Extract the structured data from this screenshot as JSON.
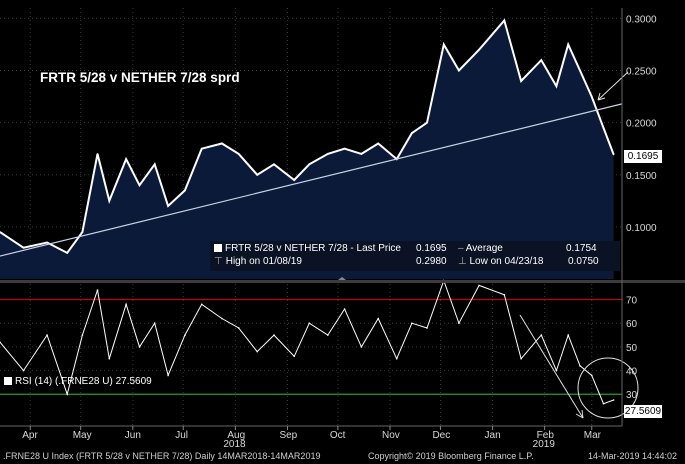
{
  "chart_data": {
    "type": "area",
    "title": "FRTR 5/28 v NETHER 7/28 sprd",
    "price_panel": {
      "ylim": [
        0.05,
        0.31
      ],
      "ticks": [
        "0.3000",
        "0.2500",
        "0.2000",
        "0.1500",
        "0.1000"
      ],
      "tick_values": [
        0.3,
        0.25,
        0.2,
        0.15,
        0.1
      ],
      "x": [
        "2018-03-14",
        "2018-03-28",
        "2018-04-11",
        "2018-04-23",
        "2018-05-02",
        "2018-05-11",
        "2018-05-18",
        "2018-05-28",
        "2018-06-05",
        "2018-06-14",
        "2018-06-22",
        "2018-07-02",
        "2018-07-12",
        "2018-07-24",
        "2018-08-03",
        "2018-08-14",
        "2018-08-24",
        "2018-09-05",
        "2018-09-14",
        "2018-09-25",
        "2018-10-05",
        "2018-10-15",
        "2018-10-25",
        "2018-11-05",
        "2018-11-14",
        "2018-11-23",
        "2018-12-03",
        "2018-12-12",
        "2018-12-24",
        "2019-01-08",
        "2019-01-18",
        "2019-01-30",
        "2019-02-08",
        "2019-02-15",
        "2019-02-22",
        "2019-03-01",
        "2019-03-08",
        "2019-03-14"
      ],
      "values": [
        0.095,
        0.08,
        0.085,
        0.075,
        0.095,
        0.17,
        0.125,
        0.165,
        0.14,
        0.16,
        0.12,
        0.135,
        0.175,
        0.18,
        0.17,
        0.15,
        0.16,
        0.145,
        0.16,
        0.17,
        0.175,
        0.17,
        0.18,
        0.165,
        0.19,
        0.2,
        0.275,
        0.25,
        0.27,
        0.298,
        0.24,
        0.26,
        0.235,
        0.275,
        0.25,
        0.225,
        0.195,
        0.1695
      ],
      "trendline": {
        "x": [
          "2018-03-14",
          "2019-03-14"
        ],
        "y": [
          0.072,
          0.218
        ]
      },
      "last_label": "0.1695"
    },
    "rsi_panel": {
      "ylim": [
        17,
        77
      ],
      "ticks": [
        "70",
        "60",
        "50",
        "40",
        "30"
      ],
      "tick_values": [
        70,
        60,
        50,
        40,
        30
      ],
      "overbought": 70,
      "oversold": 30,
      "x": [
        "2018-03-14",
        "2018-03-28",
        "2018-04-11",
        "2018-04-23",
        "2018-05-02",
        "2018-05-11",
        "2018-05-18",
        "2018-05-28",
        "2018-06-05",
        "2018-06-14",
        "2018-06-22",
        "2018-07-02",
        "2018-07-12",
        "2018-07-24",
        "2018-08-03",
        "2018-08-14",
        "2018-08-24",
        "2018-09-05",
        "2018-09-14",
        "2018-09-25",
        "2018-10-05",
        "2018-10-15",
        "2018-10-25",
        "2018-11-05",
        "2018-11-14",
        "2018-11-23",
        "2018-12-03",
        "2018-12-12",
        "2018-12-24",
        "2019-01-08",
        "2019-01-18",
        "2019-01-30",
        "2019-02-08",
        "2019-02-15",
        "2019-02-22",
        "2019-03-01",
        "2019-03-08",
        "2019-03-14"
      ],
      "values": [
        52,
        40,
        55,
        30,
        55,
        74,
        45,
        68,
        50,
        60,
        38,
        55,
        68,
        62,
        58,
        48,
        55,
        46,
        60,
        55,
        66,
        50,
        62,
        45,
        60,
        58,
        78,
        60,
        76,
        72,
        45,
        55,
        40,
        55,
        42,
        38,
        26,
        27.56
      ],
      "last_label": "27.5609"
    },
    "x_axis": {
      "months": [
        "Apr",
        "May",
        "Jun",
        "Jul",
        "Aug",
        "Sep",
        "Oct",
        "Nov",
        "Dec",
        "Jan",
        "Feb",
        "Mar"
      ],
      "month_dates": [
        "2018-04-01",
        "2018-05-01",
        "2018-06-01",
        "2018-07-01",
        "2018-08-01",
        "2018-09-01",
        "2018-10-01",
        "2018-11-01",
        "2018-12-01",
        "2019-01-01",
        "2019-02-01",
        "2019-03-01"
      ],
      "years": [
        "2018",
        "2019"
      ],
      "year_dates": [
        "2018-08-01",
        "2019-02-01"
      ]
    },
    "legend": {
      "series": "FRTR 5/28 v NETHER 7/28 - Last Price",
      "last": "0.1695",
      "average_label": "Average",
      "average": "0.1754",
      "high_label": "High on 01/08/19",
      "high": "0.2980",
      "low_label": "Low on 04/23/18",
      "low": "0.0750"
    },
    "rsi_legend": {
      "label": "RSI (14) (.FRNE28 U)",
      "value": "27.5609"
    },
    "colors": {
      "area": "#0c1a3a",
      "line": "#ffffff",
      "trend": "#c8d2e6",
      "overbought": "#cc0000",
      "oversold": "#2e9a2e",
      "grid": "#3a3a3a"
    }
  },
  "footer": {
    "left": ".FRNE28 U Index (FRTR 5/28 v NETHER 7/28)  Daily 14MAR2018-14MAR2019",
    "center": "Copyright© 2019 Bloomberg Finance L.P.",
    "right": "14-Mar-2019 14:44:02"
  }
}
